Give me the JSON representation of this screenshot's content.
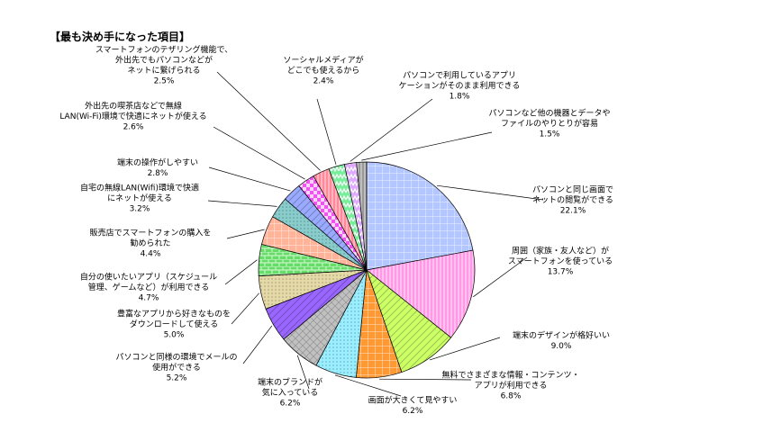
{
  "chart_data": {
    "type": "pie",
    "title": "【最も決め手になった項目】",
    "slices": [
      {
        "label": [
          "パソコンと同じ画面で",
          "ネットの閲覧ができる"
        ],
        "value": 22.1,
        "value_text": "22.1%",
        "color": "#b3c6ff",
        "pattern": "grid"
      },
      {
        "label": [
          "周囲（家族・友人など）が",
          "スマートフォンを使っている"
        ],
        "value": 13.7,
        "value_text": "13.7%",
        "color": "#ff99e6",
        "pattern": "vlines"
      },
      {
        "label": [
          "端末のデザインが格好いい"
        ],
        "value": 9.0,
        "value_text": "9.0%",
        "color": "#ccff66",
        "pattern": "diag"
      },
      {
        "label": [
          "無料でさまざまな情報・コンテンツ・",
          "アプリが利用できる"
        ],
        "value": 6.8,
        "value_text": "6.8%",
        "color": "#ff9933",
        "pattern": "grid"
      },
      {
        "label": [
          "画面が大きくて見やすい"
        ],
        "value": 6.2,
        "value_text": "6.2%",
        "color": "#99eeff",
        "pattern": "dots"
      },
      {
        "label": [
          "端末のブランドが",
          "気に入っている"
        ],
        "value": 6.2,
        "value_text": "6.2%",
        "color": "#c0c0c0",
        "pattern": "hatch"
      },
      {
        "label": [
          "パソコンと同様の環境でメールの",
          "使用ができる"
        ],
        "value": 5.2,
        "value_text": "5.2%",
        "color": "#9966ff",
        "pattern": "diag"
      },
      {
        "label": [
          "豊富なアプリから好きなものを",
          "ダウンロードして使える"
        ],
        "value": 5.0,
        "value_text": "5.0%",
        "color": "#e6d9a8",
        "pattern": "dots"
      },
      {
        "label": [
          "自分の使いたいアプリ（スケジュール",
          "管理、ゲームなど）が利用できる"
        ],
        "value": 4.7,
        "value_text": "4.7%",
        "color": "#66dd66",
        "pattern": "brick"
      },
      {
        "label": [
          "販売店でスマートフォンの購入を",
          "勧められた"
        ],
        "value": 4.4,
        "value_text": "4.4%",
        "color": "#ffb399",
        "pattern": "grid"
      },
      {
        "label": [
          "自宅の無線LAN(Wifi)環境で快適",
          "にネットが使える"
        ],
        "value": 3.2,
        "value_text": "3.2%",
        "color": "#88cccc",
        "pattern": "dots"
      },
      {
        "label": [
          "端末の操作がしやすい"
        ],
        "value": 2.8,
        "value_text": "2.8%",
        "color": "#99aaff",
        "pattern": "diag"
      },
      {
        "label": [
          "外出先の喫茶店などで無線",
          "LAN(Wi-Fi)環境で快適にネットが使える"
        ],
        "value": 2.6,
        "value_text": "2.6%",
        "color": "#ee55ee",
        "pattern": "checker"
      },
      {
        "label": [
          "スマートフォンのテザリング機能で、",
          "外出先でもパソコンなどが",
          "ネットに繋げられる"
        ],
        "value": 2.5,
        "value_text": "2.5%",
        "color": "#ff8899",
        "pattern": "vlines"
      },
      {
        "label": [
          "ソーシャルメディアが",
          "どこでも使えるから"
        ],
        "value": 2.4,
        "value_text": "2.4%",
        "color": "#77ee99",
        "pattern": "zigzag"
      },
      {
        "label": [
          "パソコンで利用しているアプリ",
          "ケーションがそのまま利用できる"
        ],
        "value": 1.8,
        "value_text": "1.8%",
        "color": "#ddaaff",
        "pattern": "zigzag"
      },
      {
        "label": [
          "パソコンなど他の機器とデータや",
          "ファイルのやりとりが容易"
        ],
        "value": 1.5,
        "value_text": "1.5%",
        "color": "#999999",
        "pattern": "vlines"
      }
    ]
  }
}
